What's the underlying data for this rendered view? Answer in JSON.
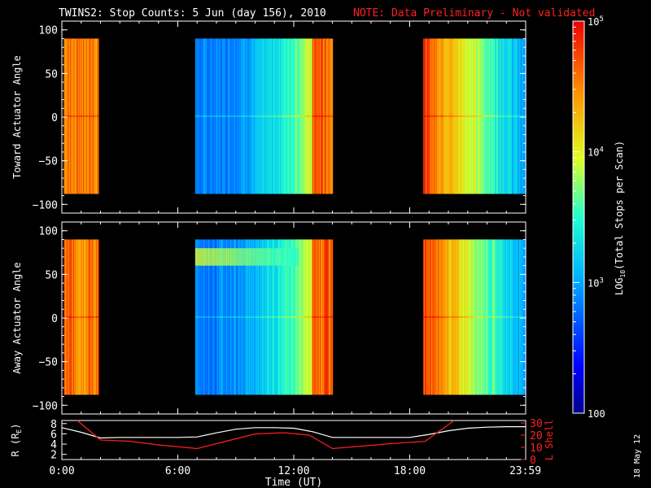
{
  "title": {
    "main": "TWINS2: Stop Counts:  5 Jun (day 156), 2010",
    "note": "NOTE: Data Preliminary - Not validated",
    "note_color": "#ff2020"
  },
  "side_stamp": "18 May 12",
  "chart_data": [
    {
      "type": "heatmap",
      "panel": "toward",
      "ylabel": "Toward Actuator Angle",
      "ylim": [
        -110,
        110
      ],
      "yticks": [
        "100",
        "50",
        "0",
        "−50",
        "−100"
      ],
      "ytick_values": [
        100,
        50,
        0,
        -50,
        -100
      ],
      "xlim_hours": [
        0,
        24
      ],
      "data_ranges_hours": [
        [
          0.1,
          1.9
        ],
        [
          6.9,
          14.0
        ],
        [
          18.7,
          24.0
        ]
      ],
      "angle_range": [
        -88,
        90
      ]
    },
    {
      "type": "heatmap",
      "panel": "away",
      "ylabel": "Away Actuator Angle",
      "ylim": [
        -110,
        110
      ],
      "yticks": [
        "100",
        "50",
        "0",
        "−50",
        "−100"
      ],
      "ytick_values": [
        100,
        50,
        0,
        -50,
        -100
      ],
      "xlim_hours": [
        0,
        24
      ],
      "data_ranges_hours": [
        [
          0.1,
          1.9
        ],
        [
          6.9,
          14.0
        ],
        [
          18.7,
          24.0
        ]
      ],
      "angle_range": [
        -88,
        90
      ]
    },
    {
      "type": "line",
      "panel": "orbit",
      "xlabel": "Time (UT)",
      "xticks": [
        "0:00",
        "6:00",
        "12:00",
        "18:00",
        "23:59"
      ],
      "xtick_values": [
        0,
        6,
        12,
        18,
        23.98
      ],
      "ylabel_left": "R (R",
      "ylabel_left_sub": "E",
      "ylabel_left_end": ")",
      "yticks_left": [
        "8",
        "6",
        "4",
        "2"
      ],
      "ytick_left_values": [
        8,
        6,
        4,
        2
      ],
      "ylim_left": [
        1,
        8.6
      ],
      "ylabel_right": "L Shell",
      "yticks_right": [
        "30",
        "20",
        "10",
        "0"
      ],
      "ytick_right_values": [
        30,
        20,
        10,
        0
      ],
      "ylim_right": [
        0,
        32
      ],
      "series": [
        {
          "color": "#ffffff",
          "x": [
            0,
            1,
            2,
            3,
            4,
            5,
            6,
            7,
            8,
            9,
            10,
            11,
            12,
            13,
            14,
            15,
            16,
            17,
            18,
            19,
            20,
            21,
            22,
            23,
            24
          ],
          "y": [
            7.2,
            6.3,
            5.2,
            5.3,
            5.3,
            5.3,
            5.3,
            5.4,
            6.2,
            6.9,
            7.2,
            7.2,
            7.1,
            6.4,
            5.3,
            5.3,
            5.3,
            5.3,
            5.3,
            5.9,
            6.6,
            7.1,
            7.3,
            7.4,
            7.4
          ]
        },
        {
          "color": "#ff2020",
          "axis": "right",
          "x": [
            0.8,
            2.0,
            3.5,
            5.0,
            7.0,
            8.5,
            10.0,
            11.5,
            12.8,
            14.0,
            15.5,
            17.0,
            18.8,
            20.3
          ],
          "y": [
            32,
            16,
            15,
            12,
            9,
            15,
            21,
            22,
            20,
            9,
            11,
            13,
            15,
            32
          ]
        }
      ]
    }
  ],
  "colorbar": {
    "label_pre": "LOG",
    "label_sub": "10",
    "label_post": "(Total Stops per Scan)",
    "ticks": [
      {
        "base": "10",
        "exp": "5",
        "value": 100000
      },
      {
        "base": "10",
        "exp": "4",
        "value": 10000
      },
      {
        "base": "10",
        "exp": "3",
        "value": 1000
      },
      {
        "base": "100",
        "exp": "",
        "value": 100
      }
    ],
    "range": [
      100,
      100000
    ]
  }
}
